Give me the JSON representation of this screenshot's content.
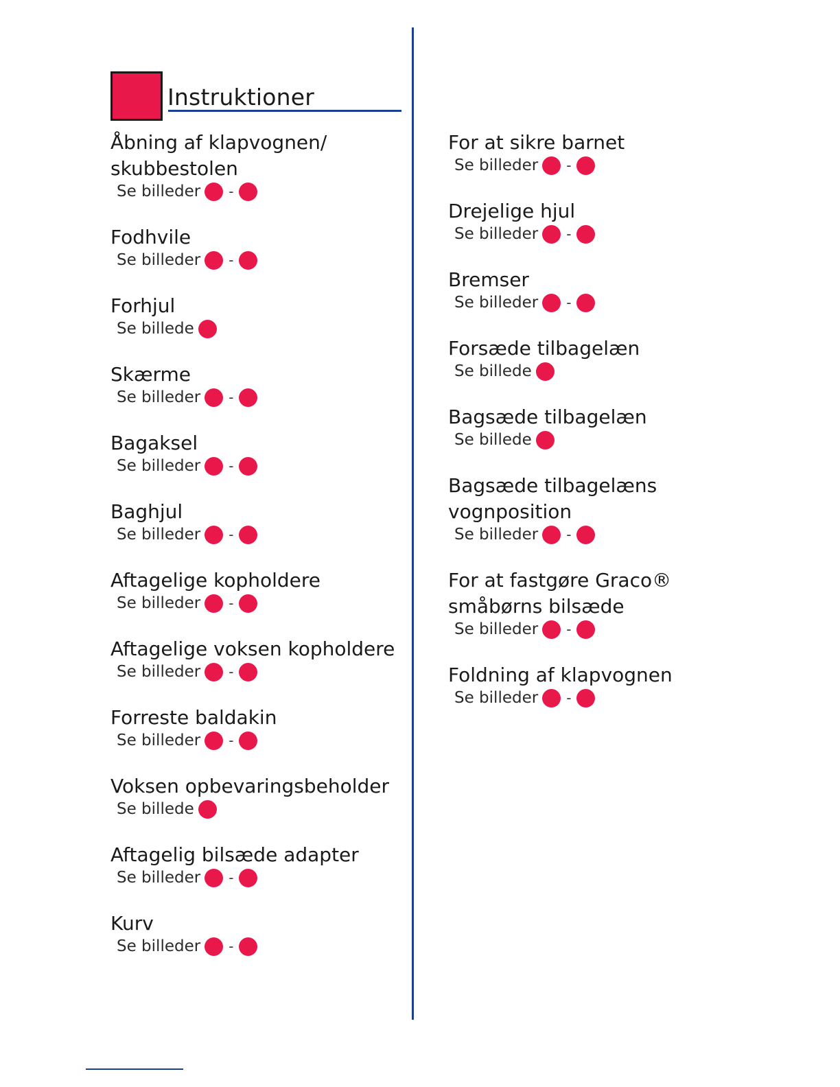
{
  "header": {
    "title": "Instruktioner"
  },
  "colors": {
    "accent": "#e8194a",
    "rule": "#1c3f94",
    "text": "#1a1a1a"
  },
  "left_column": [
    {
      "title": "Åbning af klapvognen/ skubbestolen",
      "ref": "Se billeder",
      "dot_count": 2,
      "dash": "-"
    },
    {
      "title": "Fodhvile",
      "ref": "Se billeder",
      "dot_count": 2,
      "dash": "-"
    },
    {
      "title": "Forhjul",
      "ref": "Se billede",
      "dot_count": 1,
      "dash": ""
    },
    {
      "title": "Skærme",
      "ref": "Se billeder",
      "dot_count": 2,
      "dash": "-"
    },
    {
      "title": "Bagaksel",
      "ref": "Se billeder",
      "dot_count": 2,
      "dash": "-"
    },
    {
      "title": "Baghjul",
      "ref": "Se billeder",
      "dot_count": 2,
      "dash": "-"
    },
    {
      "title": "Aftagelige kopholdere",
      "ref": "Se billeder",
      "dot_count": 2,
      "dash": "-"
    },
    {
      "title": "Aftagelige voksen kopholdere",
      "ref": "Se billeder",
      "dot_count": 2,
      "dash": "-"
    },
    {
      "title": "Forreste baldakin",
      "ref": "Se billeder",
      "dot_count": 2,
      "dash": "-"
    },
    {
      "title": "Voksen opbevaringsbeholder",
      "ref": "Se billede",
      "dot_count": 1,
      "dash": ""
    },
    {
      "title": "Aftagelig bilsæde adapter",
      "ref": "Se billeder",
      "dot_count": 2,
      "dash": "-"
    },
    {
      "title": "Kurv",
      "ref": "Se billeder",
      "dot_count": 2,
      "dash": "-"
    }
  ],
  "right_column": [
    {
      "title": "For at sikre barnet",
      "ref": "Se billeder",
      "dot_count": 2,
      "dash": "-"
    },
    {
      "title": "Drejelige hjul",
      "ref": "Se billeder",
      "dot_count": 2,
      "dash": "-"
    },
    {
      "title": "Bremser",
      "ref": "Se billeder",
      "dot_count": 2,
      "dash": "-"
    },
    {
      "title": "Forsæde tilbagelæn",
      "ref": "Se billede",
      "dot_count": 1,
      "dash": ""
    },
    {
      "title": "Bagsæde tilbagelæn",
      "ref": "Se billede",
      "dot_count": 1,
      "dash": ""
    },
    {
      "title": "Bagsæde tilbagelæns vognposition",
      "ref": "Se billeder",
      "dot_count": 2,
      "dash": "-"
    },
    {
      "title": "For at fastgøre Graco® småbørns bilsæde",
      "ref": "Se billeder",
      "dot_count": 2,
      "dash": "-"
    },
    {
      "title": "Foldning af klapvognen",
      "ref": "Se billeder",
      "dot_count": 2,
      "dash": "-"
    }
  ]
}
